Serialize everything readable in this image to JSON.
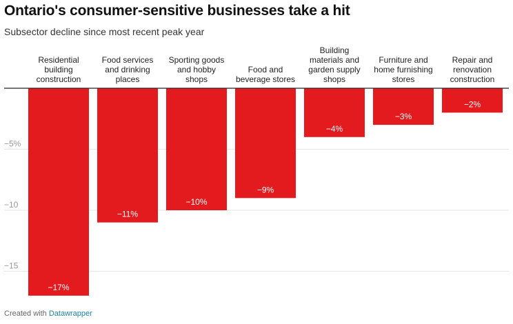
{
  "title": "Ontario's consumer-sensitive businesses take a hit",
  "subtitle": "Subsector decline since most recent peak year",
  "footer": {
    "prefix": "Created with",
    "brand": "Datawrapper"
  },
  "colors": {
    "bar": "#e31b1f",
    "grid": "#e6e6e6",
    "baseline": "#222222"
  },
  "chart_data": {
    "type": "bar",
    "categories": [
      [
        "Residential",
        "building",
        "construction"
      ],
      [
        "Food services",
        "and drinking",
        "places"
      ],
      [
        "Sporting goods",
        "and hobby",
        "shops"
      ],
      [
        "Food and",
        "beverage stores"
      ],
      [
        "Building",
        "materials and",
        "garden supply",
        "shops"
      ],
      [
        "Furniture and",
        "home furnishing",
        "stores"
      ],
      [
        "Repair and",
        "renovation",
        "construction"
      ]
    ],
    "values": [
      -17,
      -11,
      -10,
      -9,
      -4,
      -3,
      -2
    ],
    "value_labels": [
      "−17%",
      "−11%",
      "−10%",
      "−9%",
      "−4%",
      "−3%",
      "−2%"
    ],
    "yticks": [
      {
        "value": -5,
        "label": "−5%"
      },
      {
        "value": -10,
        "label": "−10"
      },
      {
        "value": -15,
        "label": "−15"
      }
    ],
    "ylim": [
      -17.5,
      0
    ],
    "grid": true
  }
}
